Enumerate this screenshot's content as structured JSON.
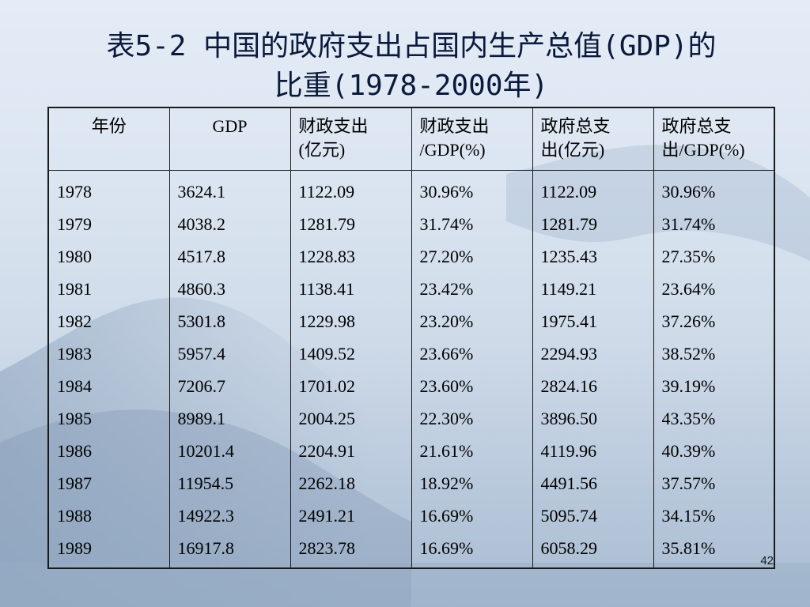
{
  "slide": {
    "title_line1": "表5-2 中国的政府支出占国内生产总值(GDP)的",
    "title_line2": "比重(1978-2000年)",
    "page_number": "42"
  },
  "table": {
    "headers": [
      [
        "年份"
      ],
      [
        "GDP"
      ],
      [
        "财政支出",
        "(亿元)"
      ],
      [
        "财政支出",
        "/GDP(%)"
      ],
      [
        "政府总支",
        "出(亿元)"
      ],
      [
        "政府总支",
        "出/GDP(%)"
      ]
    ],
    "rows": [
      [
        "1978",
        "3624.1",
        "1122.09",
        "30.96%",
        "1122.09",
        "30.96%"
      ],
      [
        "1979",
        "4038.2",
        "1281.79",
        "31.74%",
        "1281.79",
        "31.74%"
      ],
      [
        "1980",
        "4517.8",
        "1228.83",
        "27.20%",
        "1235.43",
        "27.35%"
      ],
      [
        "1981",
        "4860.3",
        "1138.41",
        "23.42%",
        "1149.21",
        "23.64%"
      ],
      [
        "1982",
        "5301.8",
        "1229.98",
        "23.20%",
        "1975.41",
        "37.26%"
      ],
      [
        "1983",
        "5957.4",
        "1409.52",
        "23.66%",
        "2294.93",
        "38.52%"
      ],
      [
        "1984",
        "7206.7",
        "1701.02",
        "23.60%",
        "2824.16",
        "39.19%"
      ],
      [
        "1985",
        "8989.1",
        "2004.25",
        "22.30%",
        "3896.50",
        "43.35%"
      ],
      [
        "1986",
        "10201.4",
        "2204.91",
        "21.61%",
        "4119.96",
        "40.39%"
      ],
      [
        "1987",
        "11954.5",
        "2262.18",
        "18.92%",
        "4491.56",
        "37.57%"
      ],
      [
        "1988",
        "14922.3",
        "2491.21",
        "16.69%",
        "5095.74",
        "34.15%"
      ],
      [
        "1989",
        "16917.8",
        "2823.78",
        "16.69%",
        "6058.29",
        "35.81%"
      ]
    ]
  }
}
